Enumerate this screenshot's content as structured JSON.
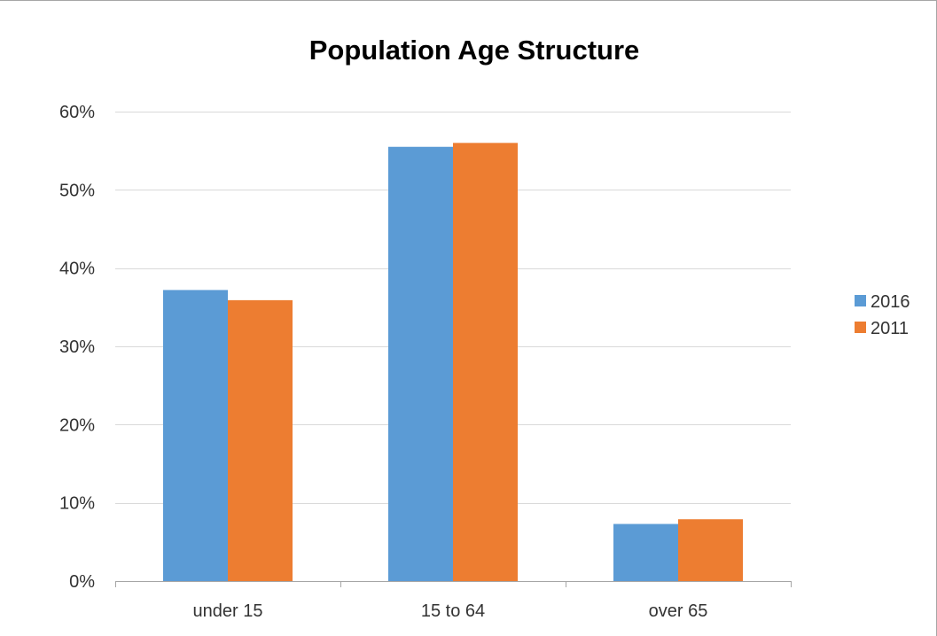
{
  "chart_data": {
    "type": "bar",
    "title": "Population Age Structure",
    "xlabel": "",
    "ylabel": "",
    "categories": [
      "under 15",
      "15 to 64",
      "over 65"
    ],
    "series": [
      {
        "name": "2016",
        "values": [
          37.2,
          55.5,
          7.3
        ],
        "color": "#5b9bd5"
      },
      {
        "name": "2011",
        "values": [
          35.9,
          56.0,
          7.9
        ],
        "color": "#ed7d31"
      }
    ],
    "ylim": [
      0,
      60
    ],
    "yticks": [
      0,
      10,
      20,
      30,
      40,
      50,
      60
    ],
    "ytick_labels": [
      "0%",
      "10%",
      "20%",
      "30%",
      "40%",
      "50%",
      "60%"
    ],
    "grid": true,
    "legend_position": "right",
    "colors": {
      "gridline": "#d9d9d9",
      "axis": "#a6a6a6",
      "frame": "#a6a6a6"
    }
  }
}
